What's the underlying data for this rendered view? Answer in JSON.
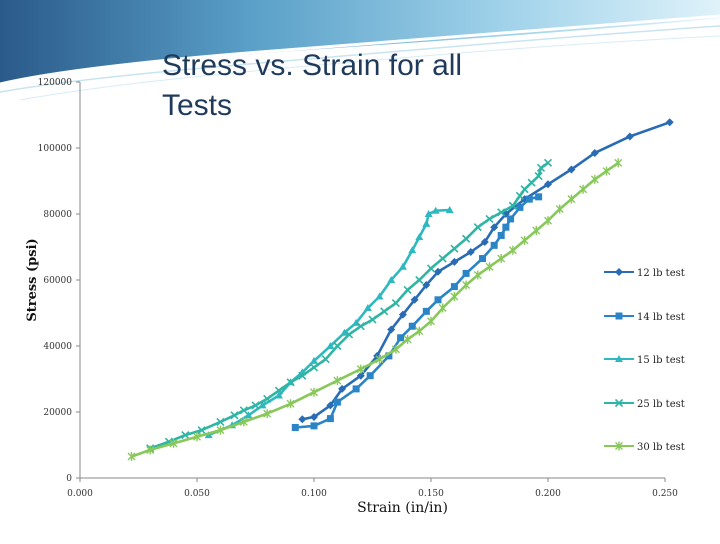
{
  "title": "Stress vs. Strain for all Tests",
  "chart_data": {
    "type": "line",
    "title": "Stress vs. Strain for all Tests",
    "xlabel": "Strain (in/in)",
    "ylabel": "Stress (psi)",
    "xlim": [
      0,
      0.25
    ],
    "ylim": [
      0,
      120000
    ],
    "x_ticks": [
      "0.000",
      "0.050",
      "0.100",
      "0.150",
      "0.200",
      "0.250"
    ],
    "y_ticks": [
      "0",
      "20000",
      "40000",
      "60000",
      "80000",
      "100000",
      "120000"
    ],
    "legend_position": "right",
    "grid": false,
    "series": [
      {
        "name": "12 lb test",
        "color": "#2a6cb4",
        "marker": "diamond",
        "points": [
          [
            0.095,
            17800
          ],
          [
            0.1,
            18500
          ],
          [
            0.107,
            22000
          ],
          [
            0.112,
            27000
          ],
          [
            0.12,
            31000
          ],
          [
            0.127,
            37000
          ],
          [
            0.133,
            45000
          ],
          [
            0.138,
            49500
          ],
          [
            0.143,
            54000
          ],
          [
            0.148,
            58500
          ],
          [
            0.153,
            62500
          ],
          [
            0.16,
            65500
          ],
          [
            0.167,
            68500
          ],
          [
            0.173,
            71500
          ],
          [
            0.177,
            76000
          ],
          [
            0.182,
            80000
          ],
          [
            0.19,
            84500
          ],
          [
            0.2,
            89000
          ],
          [
            0.21,
            93500
          ],
          [
            0.22,
            98500
          ],
          [
            0.235,
            103500
          ],
          [
            0.252,
            107800
          ]
        ]
      },
      {
        "name": "14 lb test",
        "color": "#2a84c6",
        "marker": "square",
        "points": [
          [
            0.092,
            15300
          ],
          [
            0.1,
            15800
          ],
          [
            0.107,
            18000
          ],
          [
            0.11,
            23000
          ],
          [
            0.118,
            27000
          ],
          [
            0.124,
            31000
          ],
          [
            0.132,
            37000
          ],
          [
            0.137,
            42500
          ],
          [
            0.142,
            46000
          ],
          [
            0.148,
            50500
          ],
          [
            0.153,
            54000
          ],
          [
            0.16,
            58000
          ],
          [
            0.165,
            62000
          ],
          [
            0.172,
            66500
          ],
          [
            0.177,
            70500
          ],
          [
            0.18,
            73500
          ],
          [
            0.182,
            76000
          ],
          [
            0.184,
            78500
          ],
          [
            0.188,
            82000
          ],
          [
            0.192,
            84500
          ],
          [
            0.196,
            85200
          ]
        ]
      },
      {
        "name": "15 lb test",
        "color": "#2fb8c0",
        "marker": "triangle",
        "points": [
          [
            0.055,
            13000
          ],
          [
            0.065,
            16000
          ],
          [
            0.072,
            19000
          ],
          [
            0.078,
            22000
          ],
          [
            0.085,
            25000
          ],
          [
            0.09,
            29000
          ],
          [
            0.095,
            32000
          ],
          [
            0.1,
            35500
          ],
          [
            0.107,
            40000
          ],
          [
            0.113,
            44000
          ],
          [
            0.118,
            47000
          ],
          [
            0.123,
            51500
          ],
          [
            0.128,
            55000
          ],
          [
            0.133,
            60000
          ],
          [
            0.138,
            64000
          ],
          [
            0.142,
            69000
          ],
          [
            0.145,
            73000
          ],
          [
            0.148,
            77000
          ],
          [
            0.149,
            80000
          ],
          [
            0.152,
            81000
          ],
          [
            0.158,
            81200
          ]
        ]
      },
      {
        "name": "25 lb test",
        "color": "#30b4a4",
        "marker": "x",
        "points": [
          [
            0.03,
            9000
          ],
          [
            0.038,
            11000
          ],
          [
            0.045,
            13000
          ],
          [
            0.052,
            14500
          ],
          [
            0.06,
            17000
          ],
          [
            0.066,
            19000
          ],
          [
            0.07,
            20500
          ],
          [
            0.075,
            22000
          ],
          [
            0.08,
            24000
          ],
          [
            0.085,
            26500
          ],
          [
            0.09,
            29000
          ],
          [
            0.095,
            31000
          ],
          [
            0.1,
            33500
          ],
          [
            0.105,
            36000
          ],
          [
            0.11,
            40000
          ],
          [
            0.115,
            43500
          ],
          [
            0.12,
            46000
          ],
          [
            0.125,
            48000
          ],
          [
            0.13,
            50500
          ],
          [
            0.135,
            53000
          ],
          [
            0.14,
            57000
          ],
          [
            0.145,
            60000
          ],
          [
            0.15,
            63500
          ],
          [
            0.155,
            66500
          ],
          [
            0.16,
            69500
          ],
          [
            0.165,
            72500
          ],
          [
            0.17,
            76000
          ],
          [
            0.175,
            78500
          ],
          [
            0.18,
            80500
          ],
          [
            0.185,
            82500
          ],
          [
            0.188,
            85500
          ],
          [
            0.19,
            87500
          ],
          [
            0.193,
            89500
          ],
          [
            0.196,
            91500
          ],
          [
            0.197,
            94000
          ],
          [
            0.2,
            95500
          ]
        ]
      },
      {
        "name": "30 lb test",
        "color": "#88c85a",
        "marker": "star",
        "points": [
          [
            0.022,
            6500
          ],
          [
            0.03,
            8500
          ],
          [
            0.04,
            10500
          ],
          [
            0.05,
            12500
          ],
          [
            0.06,
            14500
          ],
          [
            0.07,
            17000
          ],
          [
            0.08,
            19500
          ],
          [
            0.09,
            22500
          ],
          [
            0.1,
            26000
          ],
          [
            0.11,
            29500
          ],
          [
            0.12,
            33000
          ],
          [
            0.128,
            36000
          ],
          [
            0.135,
            39000
          ],
          [
            0.14,
            42000
          ],
          [
            0.145,
            44500
          ],
          [
            0.15,
            47500
          ],
          [
            0.155,
            51500
          ],
          [
            0.16,
            55000
          ],
          [
            0.165,
            58500
          ],
          [
            0.17,
            61500
          ],
          [
            0.175,
            64000
          ],
          [
            0.18,
            66500
          ],
          [
            0.185,
            69000
          ],
          [
            0.19,
            72000
          ],
          [
            0.195,
            75000
          ],
          [
            0.2,
            78000
          ],
          [
            0.205,
            81500
          ],
          [
            0.21,
            84500
          ],
          [
            0.215,
            87500
          ],
          [
            0.22,
            90500
          ],
          [
            0.225,
            93000
          ],
          [
            0.23,
            95500
          ]
        ]
      }
    ]
  }
}
